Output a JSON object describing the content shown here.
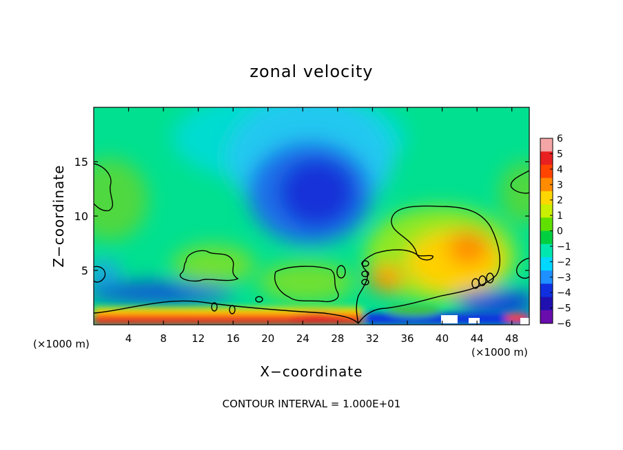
{
  "chart_data": {
    "type": "heatmap",
    "title": "zonal velocity",
    "xlabel": "X−coordinate",
    "ylabel": "Z−coordinate",
    "x_unit_label": "(×1000 m)",
    "x_unit_label_right": "(×1000 m)",
    "footer": "CONTOUR INTERVAL = 1.000E+01",
    "xlim": [
      0,
      50
    ],
    "ylim": [
      0,
      20
    ],
    "x_ticks": [
      "4",
      "8",
      "12",
      "16",
      "20",
      "24",
      "28",
      "32",
      "36",
      "40",
      "44",
      "48"
    ],
    "y_ticks": [
      "5",
      "10",
      "15"
    ],
    "colorbar": {
      "range": [
        -6,
        6
      ],
      "tick_labels": [
        "6",
        "5",
        "4",
        "3",
        "2",
        "1",
        "0",
        "−1",
        "−2",
        "−3",
        "−4",
        "−5",
        "−6"
      ],
      "colors": [
        "#f4a6a6",
        "#e82020",
        "#ff4500",
        "#ff8c00",
        "#ffd700",
        "#c8f000",
        "#60e000",
        "#00d040",
        "#00e8b0",
        "#00d8ff",
        "#1e90ff",
        "#1030e0",
        "#2010b0",
        "#6a0dad"
      ]
    },
    "features": [
      {
        "name": "upper negative core",
        "x": 26,
        "z": 12.5,
        "value": -5.5
      },
      {
        "name": "upper negative lobe",
        "x": 30,
        "z": 16,
        "value": -3
      },
      {
        "name": "lower-right positive core",
        "x": 42,
        "z": 6,
        "value": 3
      },
      {
        "name": "lower-right positive lobe",
        "x": 36,
        "z": 4,
        "value": 2.5
      },
      {
        "name": "near-surface strong positive",
        "x": 12,
        "z": 1,
        "value": 5
      },
      {
        "name": "near-surface strong positive",
        "x": 24,
        "z": 0.8,
        "value": 5
      },
      {
        "name": "low-level negative band",
        "x": 8,
        "z": 3.2,
        "value": -4
      },
      {
        "name": "low-level negative band",
        "x": 46,
        "z": 2.5,
        "value": -4
      },
      {
        "name": "left upper positive",
        "x": 1,
        "z": 12,
        "value": 1
      },
      {
        "name": "right upper positive",
        "x": 49.5,
        "z": 13,
        "value": 1
      }
    ],
    "grid": false,
    "legend": "colorbar right"
  }
}
